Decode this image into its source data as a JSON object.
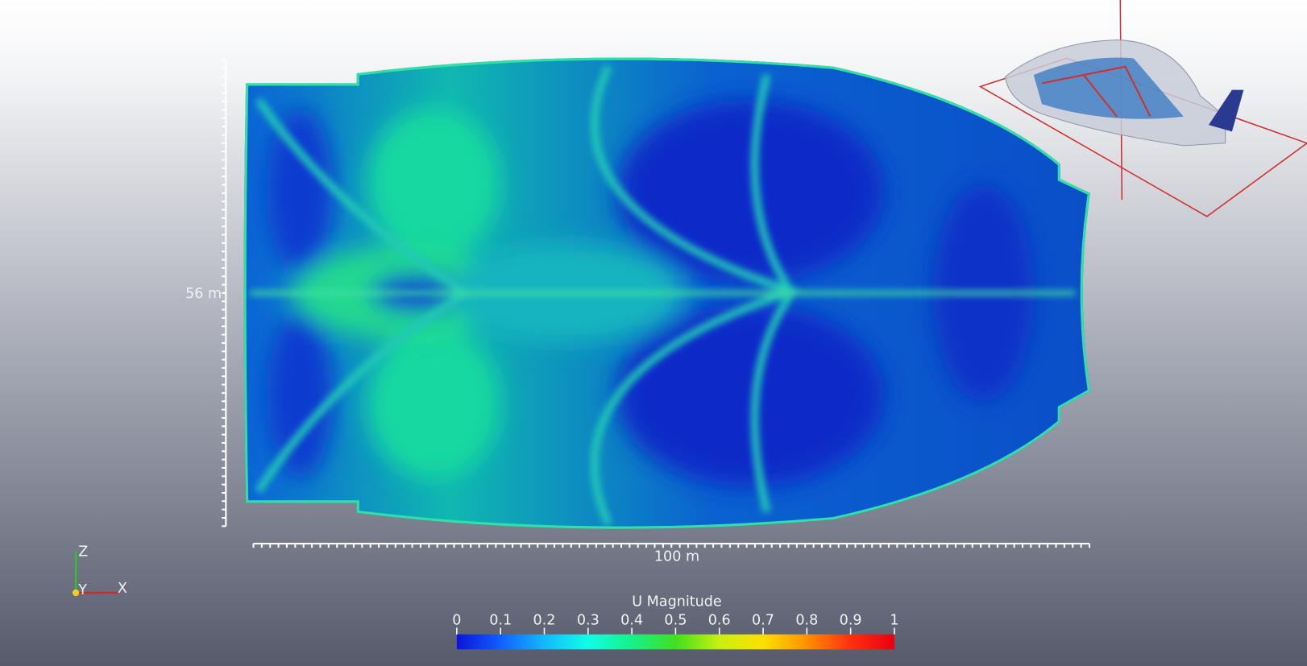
{
  "view": {
    "scale_bars": {
      "vertical": "56 m",
      "horizontal": "100 m"
    },
    "orientation_axes": {
      "z": "Z",
      "y": "Y",
      "x": "X"
    }
  },
  "colorbar": {
    "title": "U Magnitude",
    "lim": [
      0,
      1
    ],
    "ticks": [
      0,
      0.1,
      0.2,
      0.3,
      0.4,
      0.5,
      0.6,
      0.7,
      0.8,
      0.9,
      1
    ],
    "colormap": [
      "#0a14d8",
      "#1060ff",
      "#14b8ff",
      "#10ffe6",
      "#18f088",
      "#40e020",
      "#c8f010",
      "#ffe000",
      "#ff9000",
      "#ff3010",
      "#e80010"
    ]
  }
}
